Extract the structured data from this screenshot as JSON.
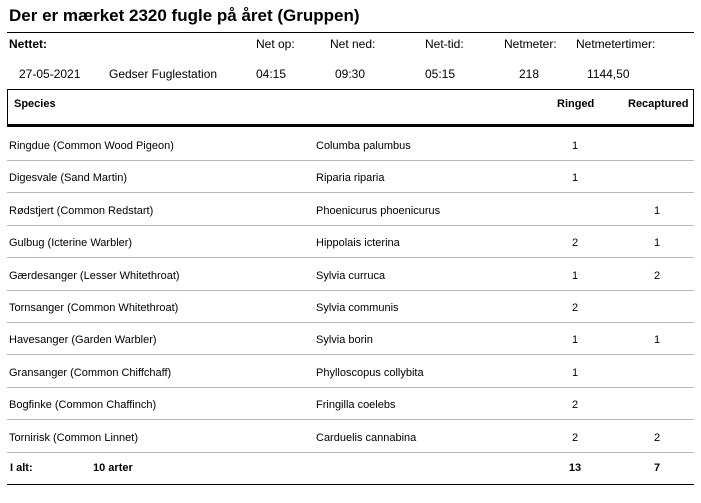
{
  "title": "Der er mærket 2320 fugle på året (Gruppen)",
  "header": {
    "net_label": "Nettet:",
    "net_op_label": "Net op:",
    "net_ned_label": "Net ned:",
    "net_tid_label": "Net-tid:",
    "netmeter_label": "Netmeter:",
    "netmetertimer_label": "Netmetertimer:",
    "date": "27-05-2021",
    "station": "Gedser Fuglestation",
    "net_op": "04:15",
    "net_ned": "09:30",
    "net_tid": "05:15",
    "netmeter": "218",
    "netmetertimer": "1144,50"
  },
  "columns": {
    "species": "Species",
    "ringed": "Ringed",
    "recaptured": "Recaptured"
  },
  "rows": [
    {
      "name": "Ringdue   (Common Wood Pigeon)",
      "latin": "Columba palumbus",
      "ringed": "1",
      "recaptured": ""
    },
    {
      "name": "Digesvale   (Sand Martin)",
      "latin": "Riparia riparia",
      "ringed": "1",
      "recaptured": ""
    },
    {
      "name": "Rødstjert   (Common Redstart)",
      "latin": "Phoenicurus phoenicurus",
      "ringed": "",
      "recaptured": "1"
    },
    {
      "name": "Gulbug   (Icterine Warbler)",
      "latin": "Hippolais icterina",
      "ringed": "2",
      "recaptured": "1"
    },
    {
      "name": "Gærdesanger   (Lesser Whitethroat)",
      "latin": "Sylvia curruca",
      "ringed": "1",
      "recaptured": "2"
    },
    {
      "name": "Tornsanger   (Common Whitethroat)",
      "latin": "Sylvia communis",
      "ringed": "2",
      "recaptured": ""
    },
    {
      "name": "Havesanger   (Garden Warbler)",
      "latin": "Sylvia borin",
      "ringed": "1",
      "recaptured": "1"
    },
    {
      "name": "Gransanger   (Common Chiffchaff)",
      "latin": "Phylloscopus collybita",
      "ringed": "1",
      "recaptured": ""
    },
    {
      "name": "Bogfinke   (Common Chaffinch)",
      "latin": "Fringilla coelebs",
      "ringed": "2",
      "recaptured": ""
    },
    {
      "name": "Tornirisk   (Common Linnet)",
      "latin": "Carduelis cannabina",
      "ringed": "2",
      "recaptured": "2"
    }
  ],
  "total": {
    "label": "I alt:",
    "species_count": "10 arter",
    "ringed": "13",
    "recaptured": "7"
  }
}
